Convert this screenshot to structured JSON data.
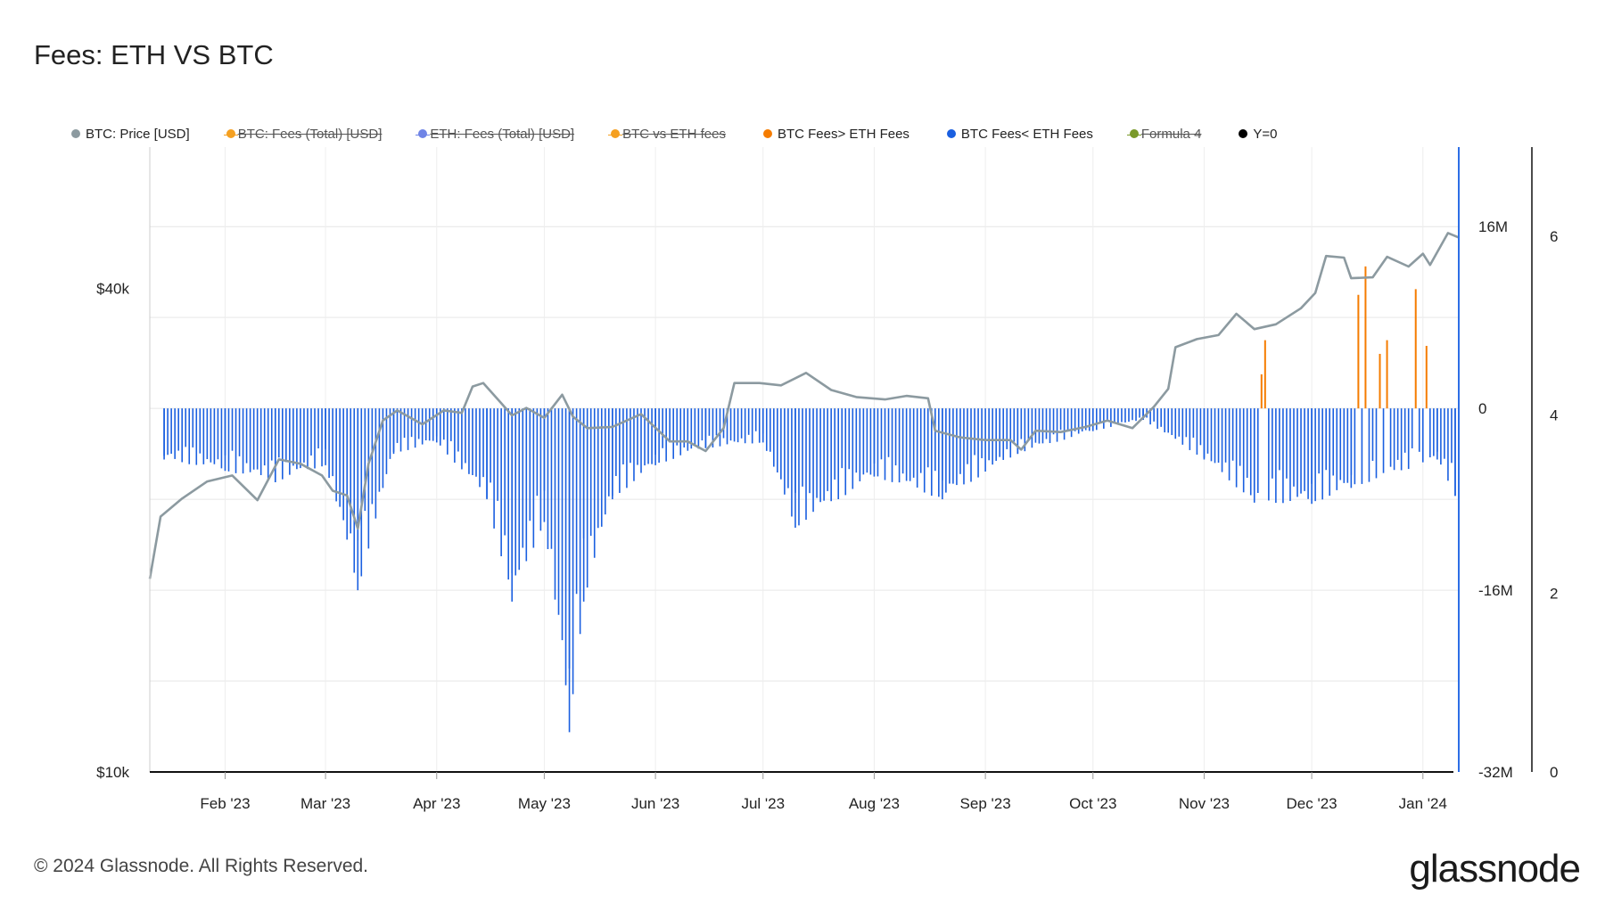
{
  "title": "Fees: ETH VS BTC",
  "footer": "© 2024 Glassnode. All Rights Reserved.",
  "brand": "glassnode",
  "legend": [
    {
      "label": "BTC: Price [USD]",
      "color": "#8c9aa0",
      "hidden": false
    },
    {
      "label": "BTC: Fees (Total) [USD]",
      "color": "#f5a020",
      "hidden": true
    },
    {
      "label": "ETH: Fees (Total) [USD]",
      "color": "#6f84e6",
      "hidden": true
    },
    {
      "label": "BTC vs ETH fees",
      "color": "#f5a020",
      "hidden": true
    },
    {
      "label": "BTC Fees> ETH Fees",
      "color": "#f57c00",
      "hidden": false
    },
    {
      "label": "BTC Fees< ETH Fees",
      "color": "#1a5fe0",
      "hidden": false
    },
    {
      "label": "Formula 4",
      "color": "#7a9a2a",
      "hidden": true
    },
    {
      "label": "Y=0",
      "color": "#000000",
      "hidden": false
    }
  ],
  "chart_data": {
    "type": "line",
    "title": "Fees: ETH VS BTC",
    "x_tick_labels": [
      "Feb '23",
      "Mar '23",
      "Apr '23",
      "May '23",
      "Jun '23",
      "Jul '23",
      "Aug '23",
      "Sep '23",
      "Oct '23",
      "Nov '23",
      "Dec '23",
      "Jan '24"
    ],
    "x_range": [
      "2023-01-11",
      "2024-01-11"
    ],
    "y_left": {
      "scale": "log",
      "ticks": [
        "$10k",
        "$40k"
      ],
      "tick_values": [
        10000,
        40000
      ],
      "range": [
        10000,
        60000
      ]
    },
    "y_right": {
      "ticks": [
        "16M",
        "0",
        "-16M",
        "-32M"
      ],
      "tick_values": [
        16000000,
        0,
        -16000000,
        -32000000
      ],
      "range": [
        -32000000,
        23000000
      ]
    },
    "y_right2": {
      "ticks": [
        "6",
        "4",
        "2",
        "0"
      ],
      "tick_values": [
        6,
        4,
        2,
        0
      ],
      "range": [
        0,
        7
      ]
    },
    "grid": true,
    "legend_position": "top",
    "series": [
      {
        "name": "BTC: Price [USD]",
        "color": "#8c9aa0",
        "axis": "left",
        "points": [
          [
            "2023-01-11",
            17400
          ],
          [
            "2023-01-14",
            20800
          ],
          [
            "2023-01-20",
            21900
          ],
          [
            "2023-01-27",
            23000
          ],
          [
            "2023-02-03",
            23400
          ],
          [
            "2023-02-10",
            21800
          ],
          [
            "2023-02-16",
            24500
          ],
          [
            "2023-02-22",
            24200
          ],
          [
            "2023-02-28",
            23400
          ],
          [
            "2023-03-03",
            22400
          ],
          [
            "2023-03-07",
            22100
          ],
          [
            "2023-03-10",
            20100
          ],
          [
            "2023-03-13",
            24200
          ],
          [
            "2023-03-17",
            27400
          ],
          [
            "2023-03-21",
            28200
          ],
          [
            "2023-03-28",
            27100
          ],
          [
            "2023-04-03",
            28200
          ],
          [
            "2023-04-08",
            28000
          ],
          [
            "2023-04-11",
            30200
          ],
          [
            "2023-04-14",
            30500
          ],
          [
            "2023-04-19",
            28800
          ],
          [
            "2023-04-22",
            27800
          ],
          [
            "2023-04-26",
            28400
          ],
          [
            "2023-05-01",
            27600
          ],
          [
            "2023-05-06",
            29500
          ],
          [
            "2023-05-09",
            27700
          ],
          [
            "2023-05-13",
            26800
          ],
          [
            "2023-05-20",
            26900
          ],
          [
            "2023-05-28",
            27900
          ],
          [
            "2023-06-05",
            25800
          ],
          [
            "2023-06-10",
            25800
          ],
          [
            "2023-06-15",
            25100
          ],
          [
            "2023-06-20",
            26800
          ],
          [
            "2023-06-23",
            30500
          ],
          [
            "2023-06-30",
            30500
          ],
          [
            "2023-07-06",
            30300
          ],
          [
            "2023-07-13",
            31400
          ],
          [
            "2023-07-20",
            29900
          ],
          [
            "2023-07-27",
            29300
          ],
          [
            "2023-08-04",
            29100
          ],
          [
            "2023-08-10",
            29400
          ],
          [
            "2023-08-16",
            29200
          ],
          [
            "2023-08-18",
            26600
          ],
          [
            "2023-08-25",
            26100
          ],
          [
            "2023-09-01",
            25900
          ],
          [
            "2023-09-08",
            25900
          ],
          [
            "2023-09-11",
            25200
          ],
          [
            "2023-09-15",
            26600
          ],
          [
            "2023-09-22",
            26500
          ],
          [
            "2023-09-29",
            26900
          ],
          [
            "2023-10-05",
            27400
          ],
          [
            "2023-10-12",
            26800
          ],
          [
            "2023-10-18",
            28500
          ],
          [
            "2023-10-22",
            30000
          ],
          [
            "2023-10-24",
            33800
          ],
          [
            "2023-10-30",
            34600
          ],
          [
            "2023-11-05",
            35000
          ],
          [
            "2023-11-10",
            37200
          ],
          [
            "2023-11-15",
            35600
          ],
          [
            "2023-11-21",
            36100
          ],
          [
            "2023-11-28",
            37800
          ],
          [
            "2023-12-02",
            39500
          ],
          [
            "2023-12-05",
            43900
          ],
          [
            "2023-12-10",
            43700
          ],
          [
            "2023-12-12",
            41200
          ],
          [
            "2023-12-18",
            41300
          ],
          [
            "2023-12-22",
            43800
          ],
          [
            "2023-12-28",
            42600
          ],
          [
            "2024-01-01",
            44200
          ],
          [
            "2024-01-03",
            42800
          ],
          [
            "2024-01-08",
            46900
          ],
          [
            "2024-01-11",
            46300
          ]
        ]
      },
      {
        "name": "BTC Fees< ETH Fees",
        "color": "#1a5fe0",
        "axis": "right",
        "unit": "USD",
        "points": [
          [
            "2023-01-15",
            -4500000
          ],
          [
            "2023-02-01",
            -5500000
          ],
          [
            "2023-02-15",
            -6500000
          ],
          [
            "2023-03-01",
            -5000000
          ],
          [
            "2023-03-10",
            -16000000
          ],
          [
            "2023-03-20",
            -4000000
          ],
          [
            "2023-04-01",
            -3000000
          ],
          [
            "2023-04-15",
            -8000000
          ],
          [
            "2023-04-22",
            -17000000
          ],
          [
            "2023-05-01",
            -10000000
          ],
          [
            "2023-05-08",
            -28500000
          ],
          [
            "2023-05-12",
            -17000000
          ],
          [
            "2023-05-20",
            -8000000
          ],
          [
            "2023-06-01",
            -5000000
          ],
          [
            "2023-06-15",
            -3500000
          ],
          [
            "2023-07-01",
            -3000000
          ],
          [
            "2023-07-10",
            -10500000
          ],
          [
            "2023-08-01",
            -6000000
          ],
          [
            "2023-08-20",
            -8000000
          ],
          [
            "2023-09-10",
            -4000000
          ],
          [
            "2023-10-01",
            -2000000
          ],
          [
            "2023-10-15",
            -1000000
          ],
          [
            "2023-11-01",
            -4500000
          ],
          [
            "2023-11-15",
            -8300000
          ],
          [
            "2023-12-01",
            -8400000
          ],
          [
            "2023-12-12",
            -7000000
          ],
          [
            "2024-01-05",
            -4500000
          ],
          [
            "2024-01-10",
            -7700000
          ]
        ]
      },
      {
        "name": "BTC Fees> ETH Fees",
        "color": "#f57c00",
        "axis": "right",
        "unit": "USD",
        "points": [
          [
            "2023-11-17",
            3000000
          ],
          [
            "2023-11-18",
            6000000
          ],
          [
            "2023-12-14",
            10000000
          ],
          [
            "2023-12-16",
            12500000
          ],
          [
            "2023-12-20",
            4800000
          ],
          [
            "2023-12-22",
            6000000
          ],
          [
            "2023-12-30",
            10500000
          ],
          [
            "2024-01-02",
            5500000
          ]
        ]
      }
    ]
  }
}
